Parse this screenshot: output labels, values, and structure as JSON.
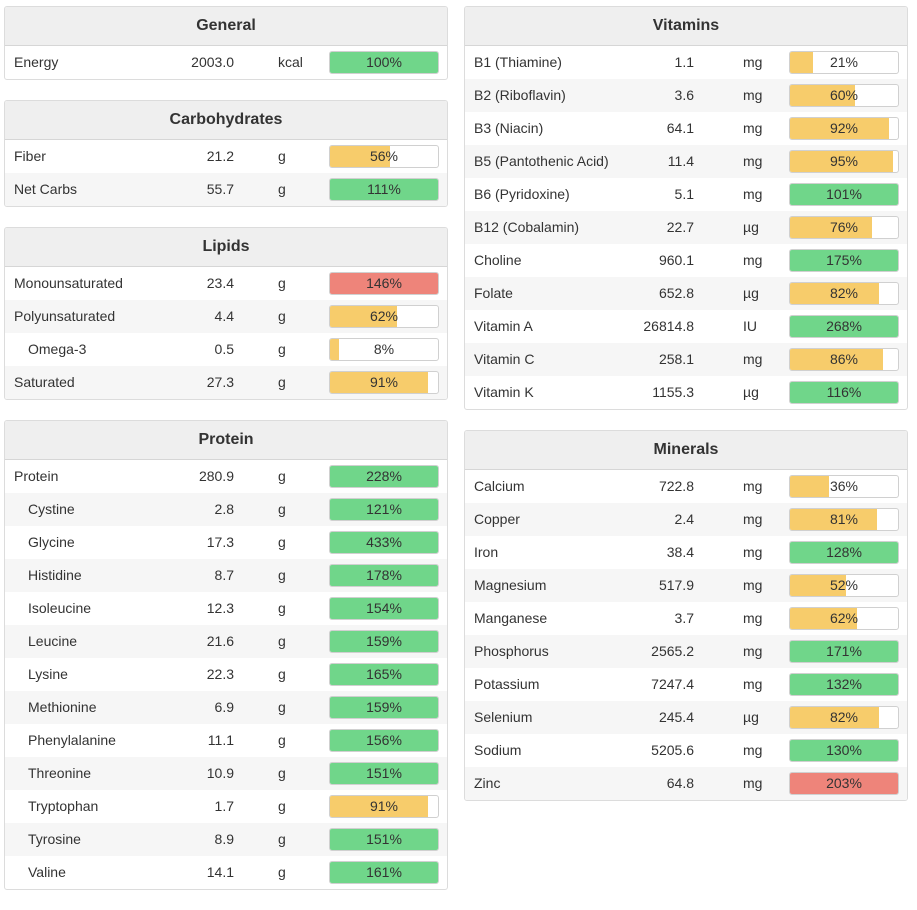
{
  "colors": {
    "green": "#70d68a",
    "yellow": "#f7cc6b",
    "red": "#ee847a"
  },
  "left_sections": [
    {
      "title": "General",
      "rows": [
        {
          "name": "Energy",
          "amount": "2003.0",
          "unit": "kcal",
          "pct_label": "100%",
          "pct": 100,
          "status": "green",
          "indent": false
        }
      ]
    },
    {
      "title": "Carbohydrates",
      "rows": [
        {
          "name": "Fiber",
          "amount": "21.2",
          "unit": "g",
          "pct_label": "56%",
          "pct": 56,
          "status": "yellow",
          "indent": false
        },
        {
          "name": "Net Carbs",
          "amount": "55.7",
          "unit": "g",
          "pct_label": "111%",
          "pct": 111,
          "status": "green",
          "indent": false
        }
      ]
    },
    {
      "title": "Lipids",
      "rows": [
        {
          "name": "Monounsaturated",
          "amount": "23.4",
          "unit": "g",
          "pct_label": "146%",
          "pct": 146,
          "status": "red",
          "indent": false
        },
        {
          "name": "Polyunsaturated",
          "amount": "4.4",
          "unit": "g",
          "pct_label": "62%",
          "pct": 62,
          "status": "yellow",
          "indent": false
        },
        {
          "name": "Omega-3",
          "amount": "0.5",
          "unit": "g",
          "pct_label": "8%",
          "pct": 8,
          "status": "yellow",
          "indent": true
        },
        {
          "name": "Saturated",
          "amount": "27.3",
          "unit": "g",
          "pct_label": "91%",
          "pct": 91,
          "status": "yellow",
          "indent": false
        }
      ]
    },
    {
      "title": "Protein",
      "rows": [
        {
          "name": "Protein",
          "amount": "280.9",
          "unit": "g",
          "pct_label": "228%",
          "pct": 228,
          "status": "green",
          "indent": false
        },
        {
          "name": "Cystine",
          "amount": "2.8",
          "unit": "g",
          "pct_label": "121%",
          "pct": 121,
          "status": "green",
          "indent": true
        },
        {
          "name": "Glycine",
          "amount": "17.3",
          "unit": "g",
          "pct_label": "433%",
          "pct": 433,
          "status": "green",
          "indent": true
        },
        {
          "name": "Histidine",
          "amount": "8.7",
          "unit": "g",
          "pct_label": "178%",
          "pct": 178,
          "status": "green",
          "indent": true
        },
        {
          "name": "Isoleucine",
          "amount": "12.3",
          "unit": "g",
          "pct_label": "154%",
          "pct": 154,
          "status": "green",
          "indent": true
        },
        {
          "name": "Leucine",
          "amount": "21.6",
          "unit": "g",
          "pct_label": "159%",
          "pct": 159,
          "status": "green",
          "indent": true
        },
        {
          "name": "Lysine",
          "amount": "22.3",
          "unit": "g",
          "pct_label": "165%",
          "pct": 165,
          "status": "green",
          "indent": true
        },
        {
          "name": "Methionine",
          "amount": "6.9",
          "unit": "g",
          "pct_label": "159%",
          "pct": 159,
          "status": "green",
          "indent": true
        },
        {
          "name": "Phenylalanine",
          "amount": "11.1",
          "unit": "g",
          "pct_label": "156%",
          "pct": 156,
          "status": "green",
          "indent": true
        },
        {
          "name": "Threonine",
          "amount": "10.9",
          "unit": "g",
          "pct_label": "151%",
          "pct": 151,
          "status": "green",
          "indent": true
        },
        {
          "name": "Tryptophan",
          "amount": "1.7",
          "unit": "g",
          "pct_label": "91%",
          "pct": 91,
          "status": "yellow",
          "indent": true
        },
        {
          "name": "Tyrosine",
          "amount": "8.9",
          "unit": "g",
          "pct_label": "151%",
          "pct": 151,
          "status": "green",
          "indent": true
        },
        {
          "name": "Valine",
          "amount": "14.1",
          "unit": "g",
          "pct_label": "161%",
          "pct": 161,
          "status": "green",
          "indent": true
        }
      ]
    }
  ],
  "right_sections": [
    {
      "title": "Vitamins",
      "rows": [
        {
          "name": "B1 (Thiamine)",
          "amount": "1.1",
          "unit": "mg",
          "pct_label": "21%",
          "pct": 21,
          "status": "yellow",
          "indent": false
        },
        {
          "name": "B2 (Riboflavin)",
          "amount": "3.6",
          "unit": "mg",
          "pct_label": "60%",
          "pct": 60,
          "status": "yellow",
          "indent": false
        },
        {
          "name": "B3 (Niacin)",
          "amount": "64.1",
          "unit": "mg",
          "pct_label": "92%",
          "pct": 92,
          "status": "yellow",
          "indent": false
        },
        {
          "name": "B5 (Pantothenic Acid)",
          "amount": "11.4",
          "unit": "mg",
          "pct_label": "95%",
          "pct": 95,
          "status": "yellow",
          "indent": false
        },
        {
          "name": "B6 (Pyridoxine)",
          "amount": "5.1",
          "unit": "mg",
          "pct_label": "101%",
          "pct": 101,
          "status": "green",
          "indent": false
        },
        {
          "name": "B12 (Cobalamin)",
          "amount": "22.7",
          "unit": "µg",
          "pct_label": "76%",
          "pct": 76,
          "status": "yellow",
          "indent": false
        },
        {
          "name": "Choline",
          "amount": "960.1",
          "unit": "mg",
          "pct_label": "175%",
          "pct": 175,
          "status": "green",
          "indent": false
        },
        {
          "name": "Folate",
          "amount": "652.8",
          "unit": "µg",
          "pct_label": "82%",
          "pct": 82,
          "status": "yellow",
          "indent": false
        },
        {
          "name": "Vitamin A",
          "amount": "26814.8",
          "unit": "IU",
          "pct_label": "268%",
          "pct": 268,
          "status": "green",
          "indent": false
        },
        {
          "name": "Vitamin C",
          "amount": "258.1",
          "unit": "mg",
          "pct_label": "86%",
          "pct": 86,
          "status": "yellow",
          "indent": false
        },
        {
          "name": "Vitamin K",
          "amount": "1155.3",
          "unit": "µg",
          "pct_label": "116%",
          "pct": 116,
          "status": "green",
          "indent": false
        }
      ]
    },
    {
      "title": "Minerals",
      "rows": [
        {
          "name": "Calcium",
          "amount": "722.8",
          "unit": "mg",
          "pct_label": "36%",
          "pct": 36,
          "status": "yellow",
          "indent": false
        },
        {
          "name": "Copper",
          "amount": "2.4",
          "unit": "mg",
          "pct_label": "81%",
          "pct": 81,
          "status": "yellow",
          "indent": false
        },
        {
          "name": "Iron",
          "amount": "38.4",
          "unit": "mg",
          "pct_label": "128%",
          "pct": 128,
          "status": "green",
          "indent": false
        },
        {
          "name": "Magnesium",
          "amount": "517.9",
          "unit": "mg",
          "pct_label": "52%",
          "pct": 52,
          "status": "yellow",
          "indent": false
        },
        {
          "name": "Manganese",
          "amount": "3.7",
          "unit": "mg",
          "pct_label": "62%",
          "pct": 62,
          "status": "yellow",
          "indent": false
        },
        {
          "name": "Phosphorus",
          "amount": "2565.2",
          "unit": "mg",
          "pct_label": "171%",
          "pct": 171,
          "status": "green",
          "indent": false
        },
        {
          "name": "Potassium",
          "amount": "7247.4",
          "unit": "mg",
          "pct_label": "132%",
          "pct": 132,
          "status": "green",
          "indent": false
        },
        {
          "name": "Selenium",
          "amount": "245.4",
          "unit": "µg",
          "pct_label": "82%",
          "pct": 82,
          "status": "yellow",
          "indent": false
        },
        {
          "name": "Sodium",
          "amount": "5205.6",
          "unit": "mg",
          "pct_label": "130%",
          "pct": 130,
          "status": "green",
          "indent": false
        },
        {
          "name": "Zinc",
          "amount": "64.8",
          "unit": "mg",
          "pct_label": "203%",
          "pct": 203,
          "status": "red",
          "indent": false
        }
      ]
    }
  ]
}
